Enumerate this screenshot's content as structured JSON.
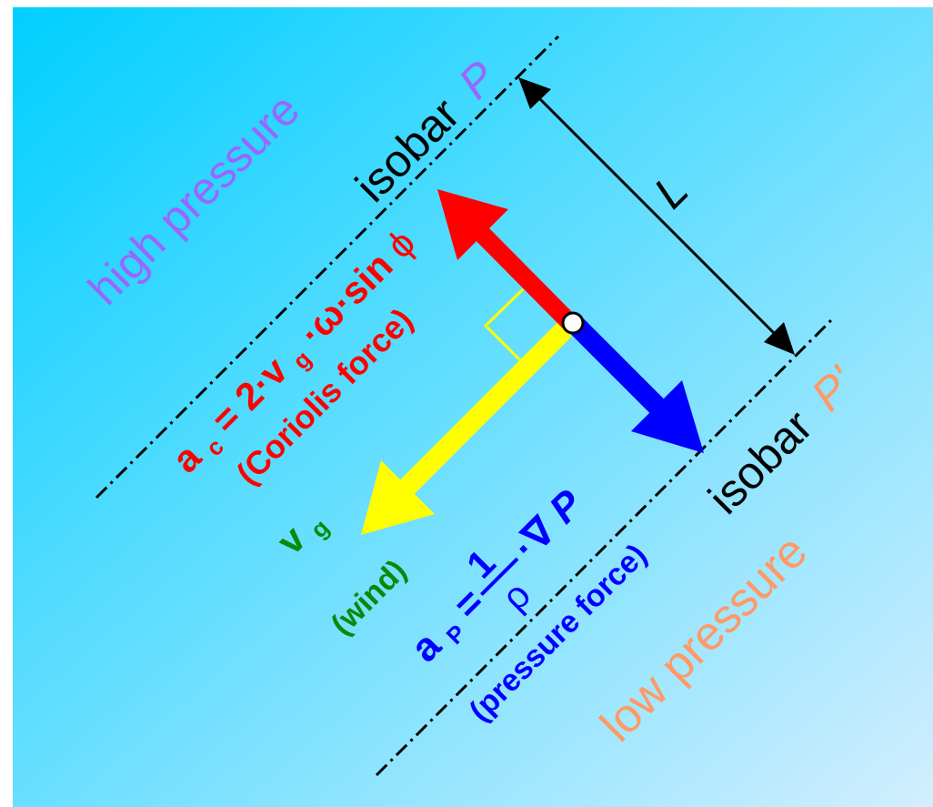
{
  "colors": {
    "background_gradient": [
      "#00cfff",
      "#d2eefe"
    ],
    "coriolis": "#ff0000",
    "pressure_force": "#0000ff",
    "wind": "#ffff00",
    "high_pressure": "#9966ff",
    "low_pressure": "#ff9966",
    "velocity_label": "#0a8a0a",
    "black": "#000000"
  },
  "labels": {
    "high_pressure": "high pressure",
    "low_pressure": "low pressure",
    "isobar_p_word": "isobar",
    "isobar_p_symbol": "P",
    "isobar_p2_word": "isobar",
    "isobar_p2_symbol": "P'",
    "distance": "L"
  },
  "coriolis_eq": {
    "a": "a",
    "a_sub": "c",
    "rhs_start": " = 2·v",
    "v_sub": "g",
    "rhs_mid": "·ω·sin ",
    "phi": "ϕ",
    "caption": "(Coriolis force)"
  },
  "wind_label": {
    "v": "v",
    "v_sub": "g",
    "caption": "(wind)"
  },
  "pressure_eq": {
    "a": "a",
    "a_sub": "P",
    "equals": " = ",
    "numerator": "1",
    "denominator": "ρ",
    "gradient": "·∇",
    "p": "P",
    "caption": "(pressure force)"
  }
}
